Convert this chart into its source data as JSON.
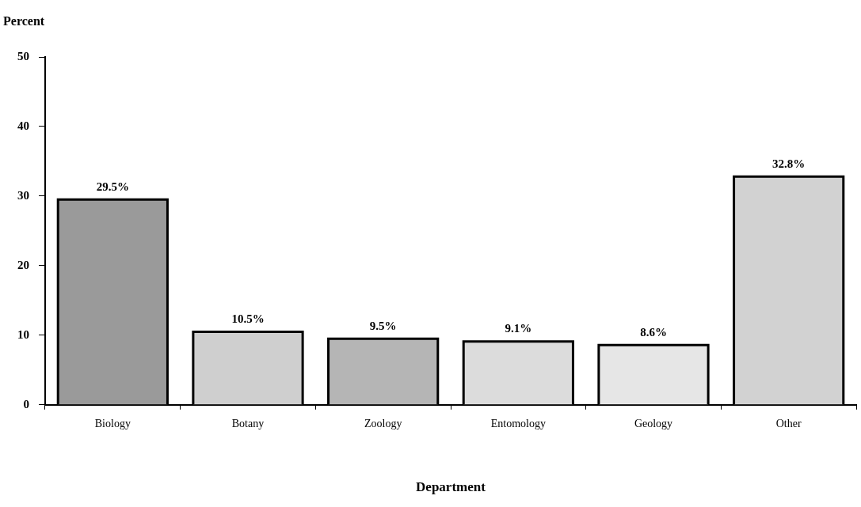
{
  "chart_data": {
    "type": "bar",
    "xlabel": "Department",
    "ylabel": "Percent",
    "categories": [
      "Biology",
      "Botany",
      "Zoology",
      "Entomology",
      "Geology",
      "Other"
    ],
    "values": [
      29.5,
      10.5,
      9.5,
      9.1,
      8.6,
      32.8
    ],
    "value_labels": [
      "29.5%",
      "10.5%",
      "9.5%",
      "9.1%",
      "8.6%",
      "32.8%"
    ],
    "colors": [
      "#9a9a9a",
      "#cfcfcf",
      "#b5b5b5",
      "#dcdcdc",
      "#e6e6e6",
      "#d2d2d2"
    ],
    "ylim": [
      0,
      50
    ],
    "yticks": [
      0,
      10,
      20,
      30,
      40,
      50
    ],
    "grid": false,
    "legend": false
  }
}
